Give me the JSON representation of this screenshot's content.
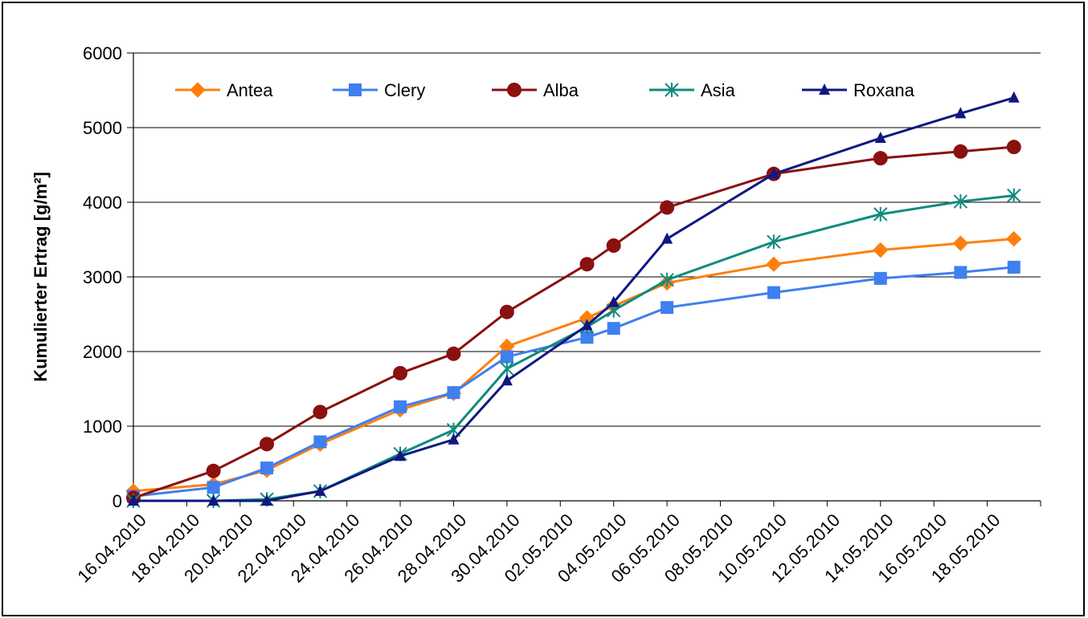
{
  "chart_data": {
    "type": "line",
    "ylabel": "Kumulierter Ertrag [g/m²]",
    "xlabel": "",
    "title": "",
    "ylim": [
      0,
      6000
    ],
    "yticks": [
      0,
      1000,
      2000,
      3000,
      4000,
      5000,
      6000
    ],
    "xlim": [
      "2010-04-16",
      "2010-05-20"
    ],
    "x_tick_labels": [
      "16.04.2010",
      "18.04.2010",
      "20.04.2010",
      "22.04.2010",
      "24.04.2010",
      "26.04.2010",
      "28.04.2010",
      "30.04.2010",
      "02.05.2010",
      "04.05.2010",
      "06.05.2010",
      "08.05.2010",
      "10.05.2010",
      "12.05.2010",
      "14.05.2010",
      "16.05.2010",
      "18.05.2010"
    ],
    "x_tick_dates": [
      "2010-04-16",
      "2010-04-18",
      "2010-04-20",
      "2010-04-22",
      "2010-04-24",
      "2010-04-26",
      "2010-04-28",
      "2010-04-30",
      "2010-05-02",
      "2010-05-04",
      "2010-05-06",
      "2010-05-08",
      "2010-05-10",
      "2010-05-12",
      "2010-05-14",
      "2010-05-16",
      "2010-05-18"
    ],
    "grid": "horizontal",
    "legend": "top",
    "dates": [
      "2010-04-16",
      "2010-04-19",
      "2010-04-21",
      "2010-04-23",
      "2010-04-26",
      "2010-04-28",
      "2010-04-30",
      "2010-05-03",
      "2010-05-04",
      "2010-05-06",
      "2010-05-10",
      "2010-05-14",
      "2010-05-17",
      "2010-05-19"
    ],
    "series": [
      {
        "name": "Antea",
        "color": "#FF7F0E",
        "marker": "diamond",
        "dates": [
          "2010-04-16",
          "2010-04-19",
          "2010-04-21",
          "2010-04-23",
          "2010-04-26",
          "2010-04-28",
          "2010-04-30",
          "2010-05-03",
          "2010-05-04",
          "2010-05-06",
          "2010-05-10",
          "2010-05-14",
          "2010-05-17",
          "2010-05-19"
        ],
        "values": [
          130,
          220,
          410,
          760,
          1220,
          1440,
          2070,
          2450,
          2610,
          2920,
          3170,
          3360,
          3450,
          3510
        ]
      },
      {
        "name": "Clery",
        "color": "#3F7FEF",
        "marker": "square",
        "dates": [
          "2010-04-16",
          "2010-04-19",
          "2010-04-21",
          "2010-04-23",
          "2010-04-26",
          "2010-04-28",
          "2010-04-30",
          "2010-05-03",
          "2010-05-04",
          "2010-05-06",
          "2010-05-10",
          "2010-05-14",
          "2010-05-17",
          "2010-05-19"
        ],
        "values": [
          60,
          180,
          440,
          790,
          1260,
          1450,
          1930,
          2190,
          2310,
          2590,
          2790,
          2980,
          3060,
          3130
        ]
      },
      {
        "name": "Alba",
        "color": "#8B1010",
        "marker": "circle",
        "dates": [
          "2010-04-16",
          "2010-04-19",
          "2010-04-21",
          "2010-04-23",
          "2010-04-26",
          "2010-04-28",
          "2010-04-30",
          "2010-05-03",
          "2010-05-04",
          "2010-05-06",
          "2010-05-10",
          "2010-05-14",
          "2010-05-17",
          "2010-05-19"
        ],
        "values": [
          40,
          400,
          760,
          1190,
          1710,
          1970,
          2530,
          3170,
          3420,
          3930,
          4380,
          4590,
          4680,
          4740
        ]
      },
      {
        "name": "Asia",
        "color": "#108A80",
        "marker": "asterisk",
        "dates": [
          "2010-04-16",
          "2010-04-19",
          "2010-04-21",
          "2010-04-23",
          "2010-04-26",
          "2010-04-28",
          "2010-04-30",
          "2010-05-03",
          "2010-05-04",
          "2010-05-06",
          "2010-05-10",
          "2010-05-14",
          "2010-05-17",
          "2010-05-19"
        ],
        "values": [
          0,
          0,
          20,
          130,
          630,
          950,
          1770,
          2330,
          2550,
          2960,
          3470,
          3840,
          4010,
          4090
        ]
      },
      {
        "name": "Roxana",
        "color": "#101880",
        "marker": "triangle",
        "dates": [
          "2010-04-16",
          "2010-04-19",
          "2010-04-21",
          "2010-04-23",
          "2010-04-26",
          "2010-04-28",
          "2010-04-30",
          "2010-05-03",
          "2010-05-04",
          "2010-05-06",
          "2010-05-10",
          "2010-05-14",
          "2010-05-17",
          "2010-05-19"
        ],
        "values": [
          0,
          0,
          0,
          130,
          600,
          820,
          1610,
          2350,
          2660,
          3510,
          4380,
          4860,
          5190,
          5400
        ]
      }
    ]
  }
}
